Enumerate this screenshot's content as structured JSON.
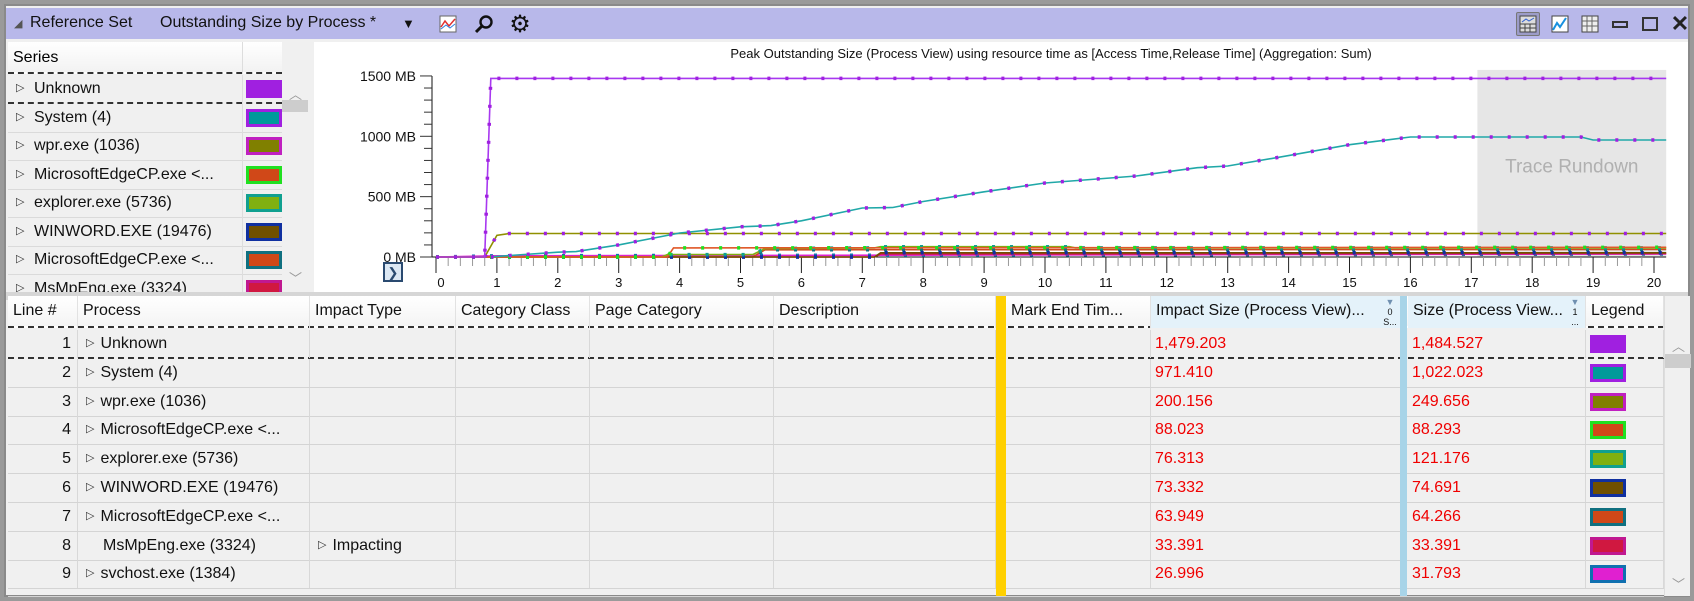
{
  "titlebar": {
    "collapse_icon": "triangle-down-icon",
    "section": "Reference Set",
    "preset": "Outstanding Size by Process *",
    "icons": [
      "chart-type-icon",
      "search-icon",
      "gear-icon"
    ],
    "right_icons": [
      "graph-and-table-icon",
      "graph-only-icon",
      "table-only-icon",
      "minimize-icon",
      "maximize-icon",
      "close-icon"
    ]
  },
  "series_panel": {
    "header": "Series",
    "items": [
      {
        "label": "Unknown",
        "fill": "#a020e0",
        "border": "#a020e0"
      },
      {
        "label": "System (4)",
        "fill": "#009a9a",
        "border": "#a020e0"
      },
      {
        "label": "wpr.exe (1036)",
        "fill": "#808000",
        "border": "#c020c0"
      },
      {
        "label": "MicrosoftEdgeCP.exe <...",
        "fill": "#d04818",
        "border": "#20e020"
      },
      {
        "label": "explorer.exe (5736)",
        "fill": "#80b010",
        "border": "#10a090"
      },
      {
        "label": "WINWORD.EXE (19476)",
        "fill": "#705000",
        "border": "#1030a0"
      },
      {
        "label": "MicrosoftEdgeCP.exe <...",
        "fill": "#d04818",
        "border": "#107080"
      },
      {
        "label": "MsMpEng.exe (3324)",
        "fill": "#d01840",
        "border": "#c01890"
      }
    ]
  },
  "chart_data": {
    "type": "line",
    "title": "Peak Outstanding Size (Process View) using resource time as [Access Time,Release Time] (Aggregation: Sum)",
    "y_ticks": [
      "0 MB",
      "500 MB",
      "1000 MB",
      "1500 MB"
    ],
    "y_tick_values": [
      0,
      500,
      1000,
      1500
    ],
    "x_ticks": [
      "0",
      "1",
      "2",
      "3",
      "4",
      "5",
      "6",
      "7",
      "8",
      "9",
      "10",
      "11",
      "12",
      "13",
      "14",
      "15",
      "16",
      "17",
      "18",
      "19",
      "20"
    ],
    "xlim": [
      0,
      20.2
    ],
    "ylim": [
      0,
      1500
    ],
    "shaded_region": {
      "label": "Trace Rundown",
      "x_start": 17.1,
      "x_end": 20.2
    },
    "series": [
      {
        "name": "Unknown",
        "color": "#a838f0",
        "marker": "#a020e0",
        "points": [
          [
            0,
            0
          ],
          [
            0.8,
            0
          ],
          [
            0.9,
            1480
          ],
          [
            20.2,
            1480
          ]
        ]
      },
      {
        "name": "System (4)",
        "color": "#20a8a8",
        "marker": "#a020e0",
        "points": [
          [
            0.9,
            0
          ],
          [
            1,
            5
          ],
          [
            2,
            40
          ],
          [
            2.3,
            45
          ],
          [
            3,
            100
          ],
          [
            4,
            199
          ],
          [
            5,
            250
          ],
          [
            5.5,
            260
          ],
          [
            6,
            300
          ],
          [
            7,
            406
          ],
          [
            7.5,
            410
          ],
          [
            8,
            460
          ],
          [
            9,
            540
          ],
          [
            10,
            613
          ],
          [
            11.5,
            671
          ],
          [
            12.5,
            740
          ],
          [
            13,
            754
          ],
          [
            14,
            840
          ],
          [
            15,
            930
          ],
          [
            16,
            994
          ],
          [
            18.8,
            994
          ],
          [
            19,
            969
          ],
          [
            20.2,
            969
          ]
        ]
      },
      {
        "name": "wpr.exe (1036)",
        "color": "#909000",
        "marker": "#a020e0",
        "points": [
          [
            0.8,
            0
          ],
          [
            1,
            180
          ],
          [
            1.2,
            195
          ],
          [
            20.2,
            195
          ]
        ]
      },
      {
        "name": "MicrosoftEdgeCP.exe <...",
        "color": "#e05828",
        "marker": "#20e020",
        "points": [
          [
            0,
            0
          ],
          [
            3.8,
            0
          ],
          [
            3.9,
            75
          ],
          [
            20.2,
            80
          ]
        ]
      },
      {
        "name": "explorer.exe (5736)",
        "color": "#80b010",
        "marker": "#10a090",
        "points": [
          [
            0,
            0
          ],
          [
            3.7,
            0
          ],
          [
            3.8,
            20
          ],
          [
            5.2,
            20
          ],
          [
            5.4,
            70
          ],
          [
            7.2,
            75
          ],
          [
            7.3,
            85
          ],
          [
            10.4,
            85
          ],
          [
            10.5,
            75
          ],
          [
            20.2,
            75
          ]
        ]
      },
      {
        "name": "WINWORD.EXE (19476)",
        "color": "#705000",
        "marker": "#1030a0",
        "points": [
          [
            0,
            0
          ],
          [
            7.2,
            0
          ],
          [
            7.3,
            35
          ],
          [
            20.2,
            35
          ]
        ]
      },
      {
        "name": "MicrosoftEdgeCP.exe <...",
        "color": "#d04820",
        "marker": "#107080",
        "points": [
          [
            0,
            0
          ],
          [
            5.2,
            0
          ],
          [
            5.4,
            60
          ],
          [
            20.2,
            62
          ]
        ]
      },
      {
        "name": "MsMpEng.exe (3324)",
        "color": "#d01840",
        "marker": "#c01890",
        "points": [
          [
            0,
            0
          ],
          [
            7.2,
            0
          ],
          [
            7.3,
            25
          ],
          [
            20.2,
            30
          ]
        ]
      },
      {
        "name": "svchost.exe (1384)",
        "color": "#e020d0",
        "marker": "#1070b0",
        "points": [
          [
            0,
            0
          ],
          [
            1,
            10
          ],
          [
            20.2,
            25
          ]
        ]
      }
    ]
  },
  "table": {
    "columns": [
      "Line #",
      "Process",
      "Impact Type",
      "Category Class",
      "Page Category",
      "Description",
      "Mark End Tim...",
      "Impact Size (Process View)...",
      "Size (Process View...",
      "Legend"
    ],
    "sort_markers": {
      "impact": "0",
      "impact_sub": "S...",
      "size": "1",
      "size_sub": "..."
    },
    "rows": [
      {
        "line": "1",
        "process": "Unknown",
        "expand": true,
        "impact_type": "",
        "impact_size": "1,479.203",
        "size": "1,484.527",
        "fill": "#a020e0",
        "border": "#a020e0"
      },
      {
        "line": "2",
        "process": "System (4)",
        "expand": true,
        "impact_type": "",
        "impact_size": "971.410",
        "size": "1,022.023",
        "fill": "#009a9a",
        "border": "#a020e0"
      },
      {
        "line": "3",
        "process": "wpr.exe (1036)",
        "expand": true,
        "impact_type": "",
        "impact_size": "200.156",
        "size": "249.656",
        "fill": "#808000",
        "border": "#c020c0"
      },
      {
        "line": "4",
        "process": "MicrosoftEdgeCP.exe <...",
        "expand": true,
        "impact_type": "",
        "impact_size": "88.023",
        "size": "88.293",
        "fill": "#d04818",
        "border": "#20e020"
      },
      {
        "line": "5",
        "process": "explorer.exe (5736)",
        "expand": true,
        "impact_type": "",
        "impact_size": "76.313",
        "size": "121.176",
        "fill": "#80b010",
        "border": "#10a090"
      },
      {
        "line": "6",
        "process": "WINWORD.EXE (19476)",
        "expand": true,
        "impact_type": "",
        "impact_size": "73.332",
        "size": "74.691",
        "fill": "#705000",
        "border": "#1030a0"
      },
      {
        "line": "7",
        "process": "MicrosoftEdgeCP.exe <...",
        "expand": true,
        "impact_type": "",
        "impact_size": "63.949",
        "size": "64.266",
        "fill": "#d04818",
        "border": "#107080"
      },
      {
        "line": "8",
        "process": "MsMpEng.exe (3324)",
        "expand": false,
        "impact_type": "Impacting",
        "impact_size": "33.391",
        "size": "33.391",
        "fill": "#d01840",
        "border": "#c01890"
      },
      {
        "line": "9",
        "process": "svchost.exe (1384)",
        "expand": true,
        "impact_type": "",
        "impact_size": "26.996",
        "size": "31.793",
        "fill": "#e020d0",
        "border": "#1070b0"
      }
    ]
  },
  "colors": {
    "titlebar": "#b8b8ea",
    "value_text": "#f00000",
    "freeze_bar": "#ffd000",
    "sort_bar": "#a8d4e8"
  }
}
